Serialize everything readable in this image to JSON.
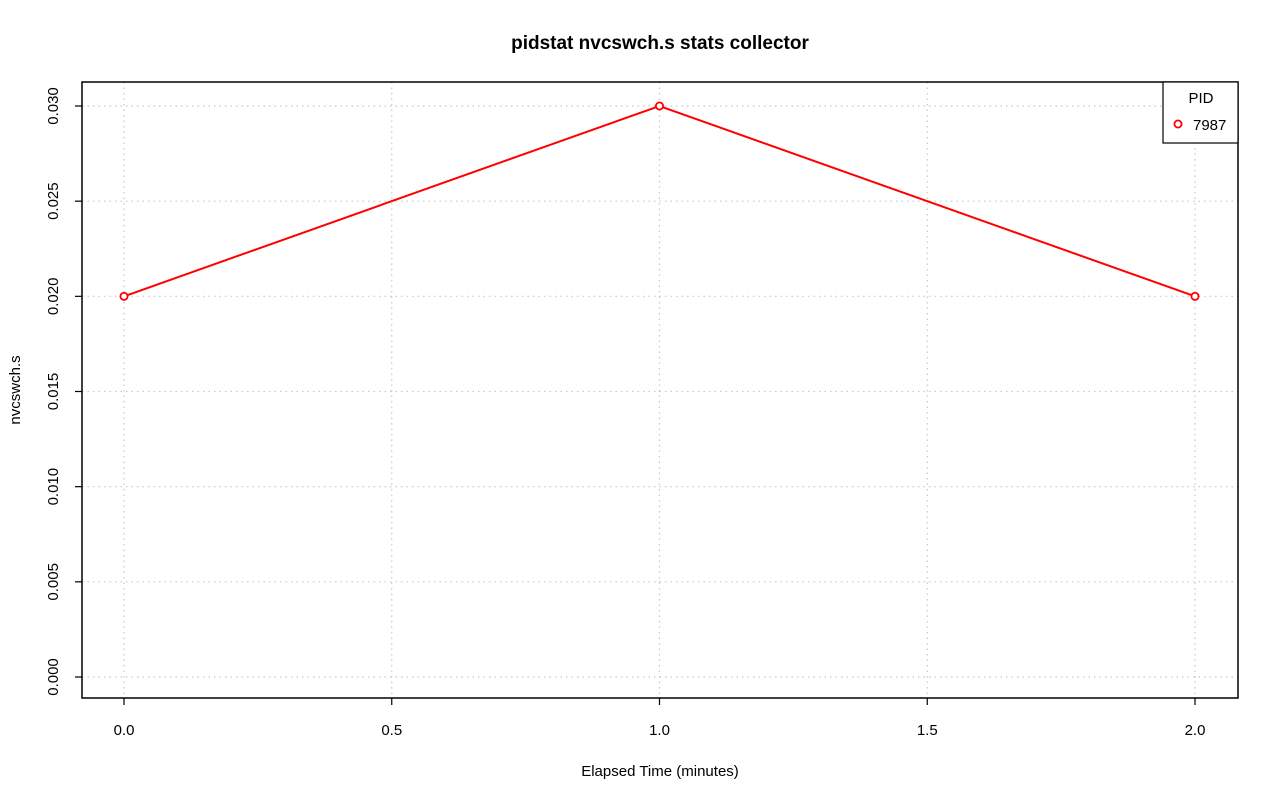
{
  "chart_data": {
    "type": "line",
    "title": "pidstat nvcswch.s stats collector",
    "xlabel": "Elapsed Time (minutes)",
    "ylabel": "nvcswch.s",
    "xlim": [
      0.0,
      2.0
    ],
    "ylim": [
      0.0,
      0.03
    ],
    "x_ticks": [
      "0.0",
      "0.5",
      "1.0",
      "1.5",
      "2.0"
    ],
    "y_ticks": [
      "0.000",
      "0.005",
      "0.010",
      "0.015",
      "0.020",
      "0.025",
      "0.030"
    ],
    "grid": true,
    "legend": {
      "title": "PID",
      "placement": "top-right"
    },
    "series": [
      {
        "name": "7987",
        "color": "#ff0000",
        "marker": "open-circle",
        "x": [
          0.0,
          1.0,
          2.0
        ],
        "y": [
          0.02,
          0.03,
          0.02
        ]
      }
    ]
  }
}
